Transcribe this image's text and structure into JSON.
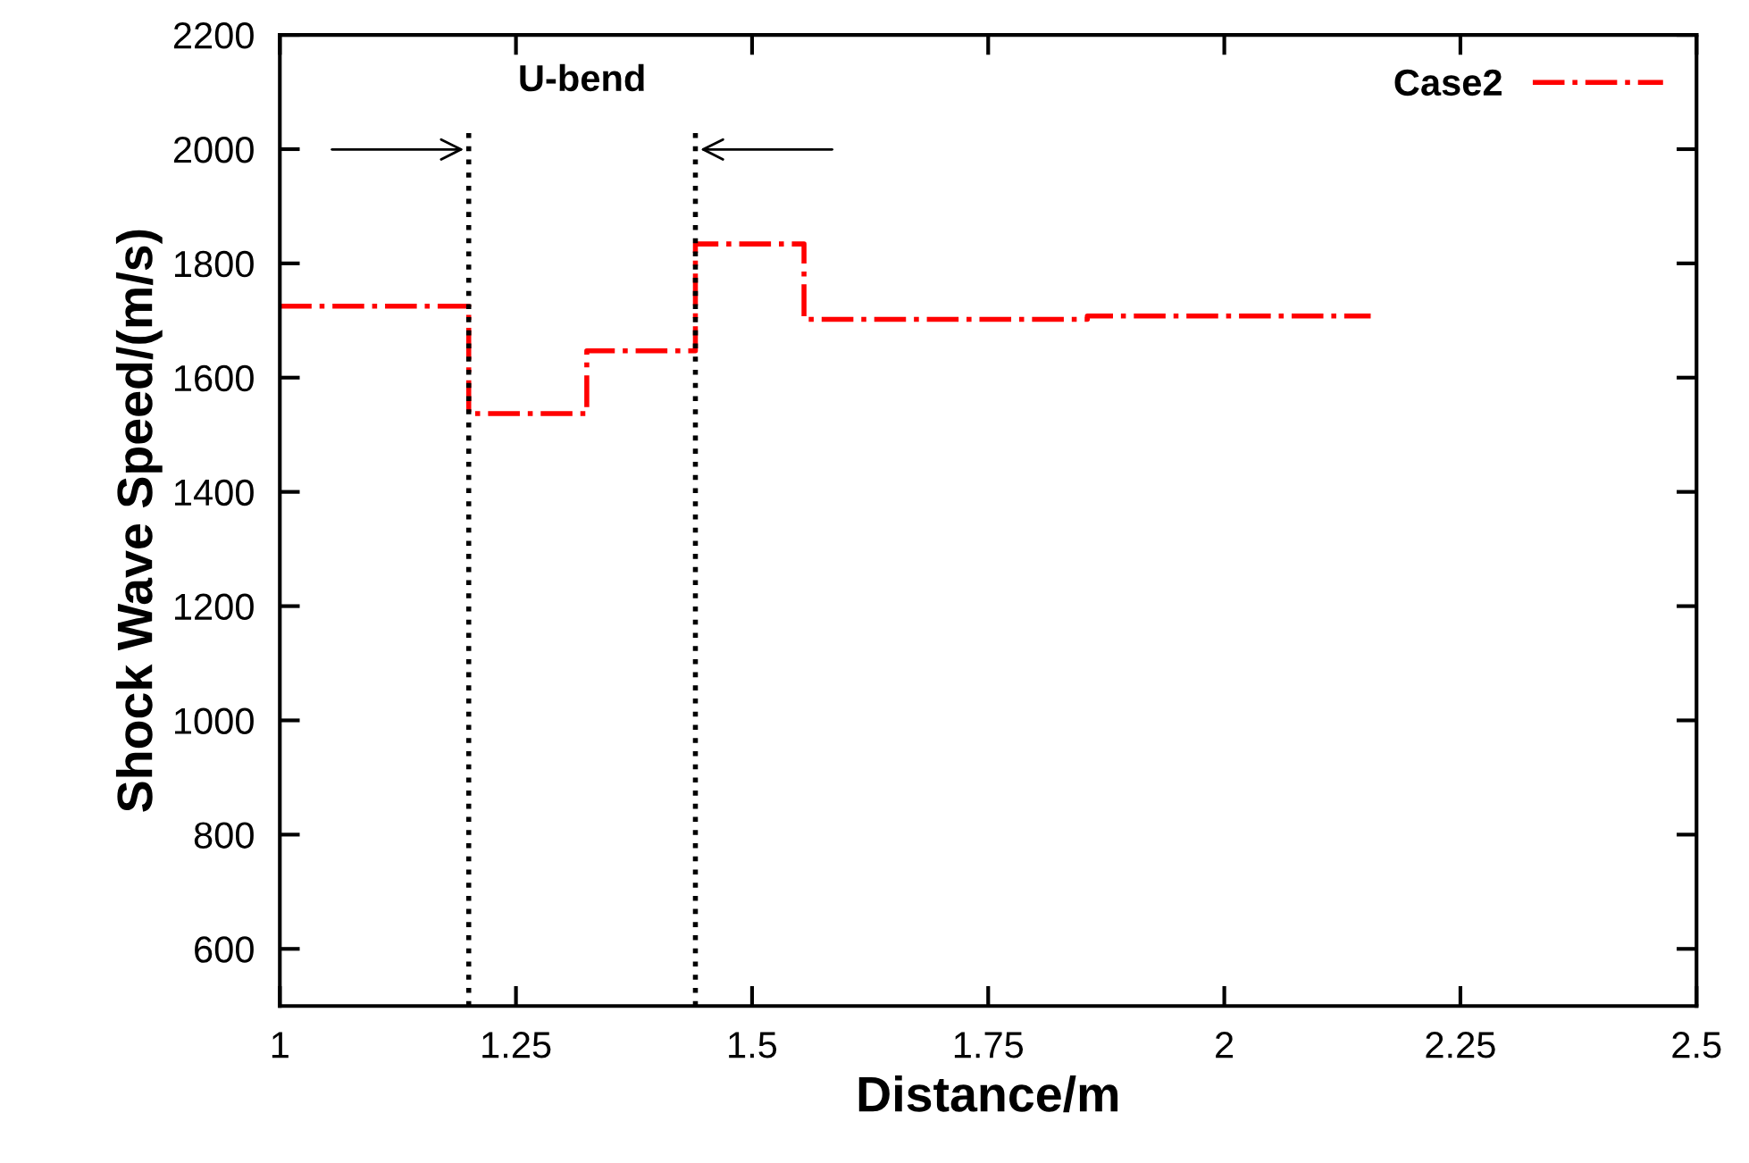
{
  "chart_data": {
    "type": "step",
    "xlabel": "Distance/m",
    "ylabel": "Shock Wave Speed/(m/s)",
    "series": [
      {
        "name": "Case2",
        "color": "#ff0000",
        "line_style": "dashdot",
        "x": [
          1,
          1.2,
          1.325,
          1.44,
          1.555,
          1.855,
          2.155
        ],
        "values": [
          1725,
          1537,
          1647,
          1834,
          1702,
          1708,
          1708
        ]
      }
    ],
    "xlim": [
      1,
      2.5
    ],
    "xticks": [
      1,
      1.25,
      1.5,
      1.75,
      2,
      2.25,
      2.5
    ],
    "ylim": [
      500,
      2200
    ],
    "yticks": [
      600,
      800,
      1000,
      1200,
      1400,
      1600,
      1800,
      2000,
      2200
    ],
    "ref_lines": [
      {
        "axis": "x",
        "value": 1.2,
        "label": null,
        "color": "#000000",
        "line_style": "dotted"
      },
      {
        "axis": "x",
        "value": 1.44,
        "label": null,
        "color": "#000000",
        "line_style": "dotted"
      }
    ],
    "annotations": [
      "U-bend"
    ],
    "grid": false,
    "legend": "top right",
    "marker": "none"
  }
}
